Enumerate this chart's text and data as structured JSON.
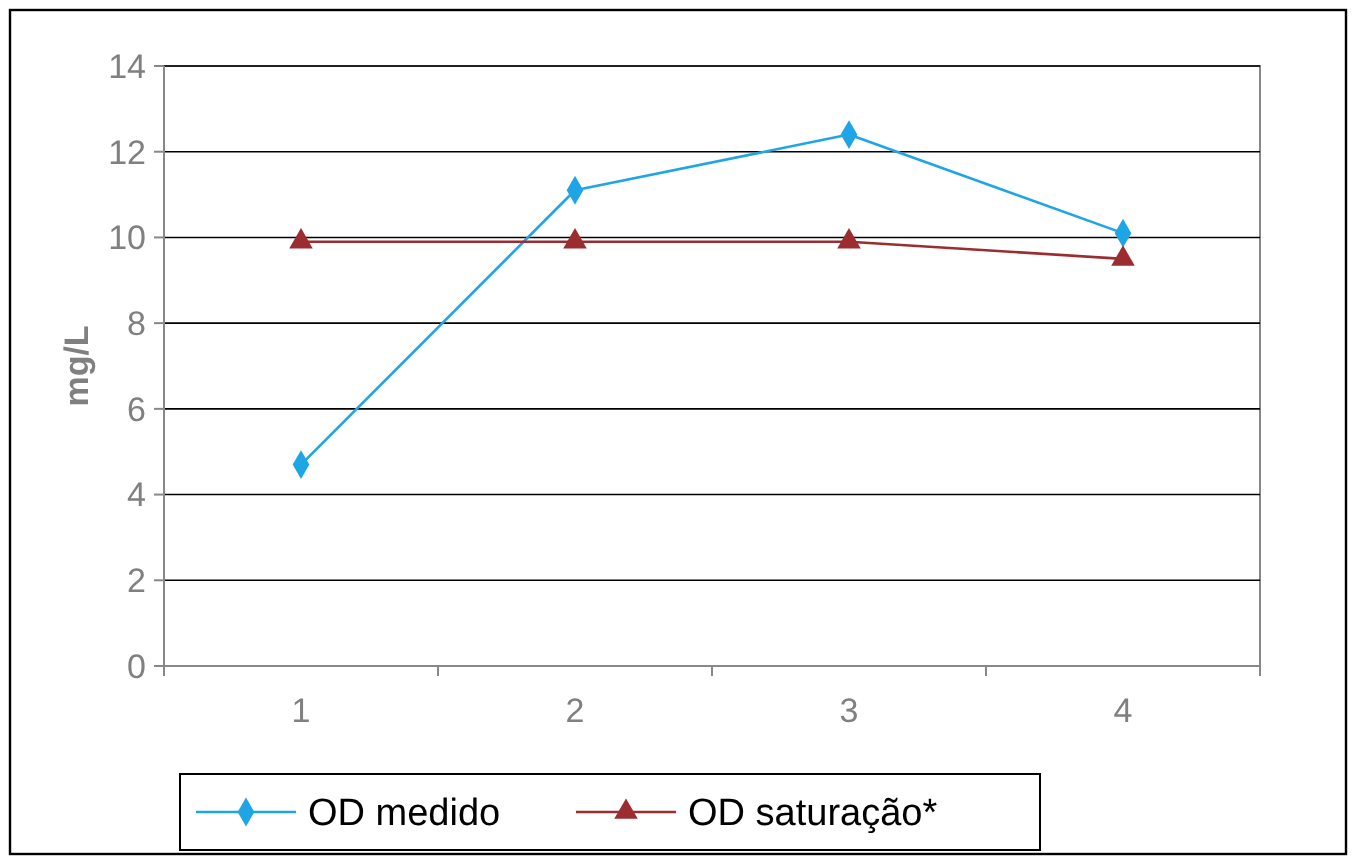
{
  "chart_data": {
    "type": "line",
    "ylabel": "mg/L",
    "categories": [
      "1",
      "2",
      "3",
      "4"
    ],
    "ylim": [
      0,
      14
    ],
    "yticks": [
      0,
      2,
      4,
      6,
      8,
      10,
      12,
      14
    ],
    "grid": "y",
    "legend": "bottom",
    "series": [
      {
        "name": "OD medido",
        "color": "#1ea5e6",
        "marker": "diamond",
        "values": [
          4.7,
          11.1,
          12.4,
          10.1
        ]
      },
      {
        "name": "OD saturação*",
        "color": "#9b2d30",
        "marker": "triangle",
        "values": [
          9.9,
          9.9,
          9.9,
          9.5
        ]
      }
    ]
  }
}
